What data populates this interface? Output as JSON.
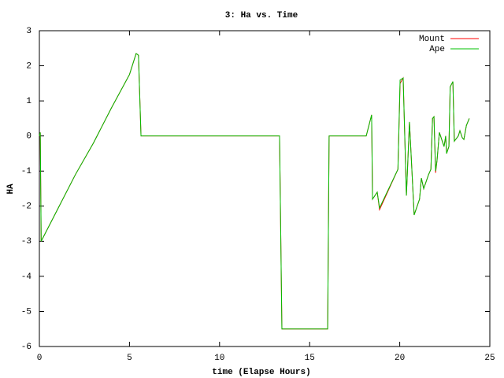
{
  "chart_data": {
    "type": "line",
    "title": "3: Ha vs. Time",
    "x_label": "time (Elapse Hours)",
    "y_label": "HA",
    "x": [
      0,
      0.05,
      0.1,
      0.15,
      1,
      2,
      3,
      4,
      5,
      5.37,
      5.5,
      5.64,
      13.33,
      13.46,
      16.0,
      16.08,
      18.14,
      18.44,
      18.49,
      18.75,
      18.88,
      19.9,
      20.02,
      20.19,
      20.37,
      20.54,
      20.8,
      21.1,
      21.2,
      21.33,
      21.6,
      21.73,
      21.82,
      21.9,
      21.99,
      22.07,
      22.2,
      22.46,
      22.55,
      22.6,
      22.73,
      22.8,
      22.95,
      23.03,
      23.25,
      23.34,
      23.47,
      23.56,
      23.7,
      23.86
    ],
    "series": [
      {
        "name": "Mount",
        "color": "#ff0000",
        "values": [
          0,
          0.1,
          -3.0,
          -2.95,
          -2.1,
          -1.1,
          -0.2,
          0.8,
          1.75,
          2.35,
          2.3,
          0,
          0,
          -5.5,
          -5.5,
          0,
          0,
          0.6,
          -1.8,
          -1.6,
          -2.1,
          -0.95,
          1.5,
          1.65,
          -1.7,
          0.4,
          -2.25,
          -1.8,
          -1.2,
          -1.5,
          -1.1,
          -0.95,
          0.5,
          0.55,
          -1.05,
          -0.7,
          0.1,
          -0.3,
          0,
          -0.5,
          -0.3,
          1.4,
          1.55,
          -0.15,
          0,
          0.15,
          -0.05,
          -0.1,
          0.3,
          0.5
        ]
      },
      {
        "name": "Ape",
        "color": "#00c000",
        "values": [
          0,
          0.1,
          -3.0,
          -2.95,
          -2.1,
          -1.1,
          -0.2,
          0.8,
          1.75,
          2.35,
          2.3,
          0,
          0,
          -5.5,
          -5.5,
          0,
          0,
          0.6,
          -1.8,
          -1.6,
          -2.05,
          -0.95,
          1.6,
          1.65,
          -1.7,
          0.4,
          -2.25,
          -1.8,
          -1.2,
          -1.5,
          -1.1,
          -0.95,
          0.5,
          0.55,
          -1.0,
          -0.7,
          0.1,
          -0.3,
          0,
          -0.5,
          -0.3,
          1.4,
          1.55,
          -0.15,
          0,
          0.15,
          -0.05,
          -0.1,
          0.3,
          0.5
        ]
      }
    ],
    "xlim": [
      0,
      25
    ],
    "xticks": [
      0,
      5,
      10,
      15,
      20,
      25
    ],
    "ylim": [
      -6,
      3
    ],
    "yticks": [
      -6,
      -5,
      -4,
      -3,
      -2,
      -1,
      0,
      1,
      2,
      3
    ],
    "grid": false,
    "legend": "top-right"
  }
}
